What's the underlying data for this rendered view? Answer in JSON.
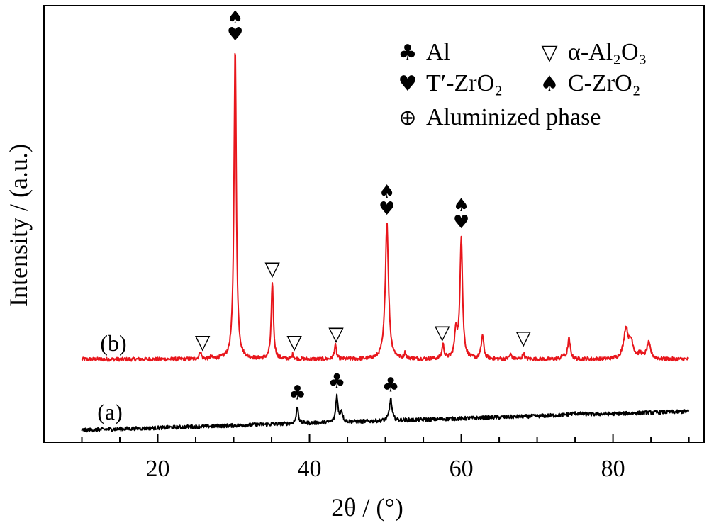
{
  "chart_data": {
    "type": "line",
    "xlabel": "2θ / (°)",
    "ylabel": "Intensity / (a.u.)",
    "xlim": [
      5,
      92
    ],
    "x_ticks": [
      20,
      40,
      60,
      80
    ],
    "grid": false,
    "y_ticks_shown": false,
    "series": [
      {
        "name": "(b)",
        "color": "#e8161c",
        "baseline": 0.05,
        "drift": 0.0,
        "peaks": [
          {
            "x": 25.6,
            "h": 0.025,
            "w": 0.15
          },
          {
            "x": 27.0,
            "h": 0.006,
            "w": 0.15
          },
          {
            "x": 30.2,
            "h": 1.0,
            "w": 0.18
          },
          {
            "x": 35.1,
            "h": 0.24,
            "w": 0.17
          },
          {
            "x": 37.8,
            "h": 0.015,
            "w": 0.14
          },
          {
            "x": 43.4,
            "h": 0.045,
            "w": 0.16
          },
          {
            "x": 50.2,
            "h": 0.44,
            "w": 0.25
          },
          {
            "x": 52.6,
            "h": 0.018,
            "w": 0.15
          },
          {
            "x": 57.6,
            "h": 0.045,
            "w": 0.17
          },
          {
            "x": 59.3,
            "h": 0.09,
            "w": 0.2
          },
          {
            "x": 60.0,
            "h": 0.39,
            "w": 0.2
          },
          {
            "x": 62.8,
            "h": 0.075,
            "w": 0.2
          },
          {
            "x": 66.5,
            "h": 0.015,
            "w": 0.2
          },
          {
            "x": 68.2,
            "h": 0.02,
            "w": 0.15
          },
          {
            "x": 73.4,
            "h": 0.01,
            "w": 0.2
          },
          {
            "x": 74.2,
            "h": 0.065,
            "w": 0.2
          },
          {
            "x": 81.7,
            "h": 0.095,
            "w": 0.35
          },
          {
            "x": 82.4,
            "h": 0.05,
            "w": 0.35
          },
          {
            "x": 84.7,
            "h": 0.05,
            "w": 0.3
          },
          {
            "x": 83.6,
            "h": 0.015,
            "w": 0.3
          }
        ]
      },
      {
        "name": "(a)",
        "color": "#000000",
        "baseline": 0.0,
        "drift": 0.06,
        "peaks": [
          {
            "x": 38.4,
            "h": 0.055,
            "w": 0.16
          },
          {
            "x": 43.6,
            "h": 0.085,
            "w": 0.16
          },
          {
            "x": 44.2,
            "h": 0.035,
            "w": 0.2
          },
          {
            "x": 50.7,
            "h": 0.07,
            "w": 0.2
          },
          {
            "x": 75.0,
            "h": 0.005,
            "w": 1.0
          }
        ]
      }
    ],
    "phase_markers": [
      {
        "x": 25.9,
        "symbol": "▽",
        "series": "(b)"
      },
      {
        "x": 30.2,
        "symbol": "♠♥",
        "series": "(b)"
      },
      {
        "x": 35.1,
        "symbol": "▽",
        "series": "(b)"
      },
      {
        "x": 38.0,
        "symbol": "▽",
        "series": "(b)"
      },
      {
        "x": 43.5,
        "symbol": "▽",
        "series": "(b)"
      },
      {
        "x": 50.2,
        "symbol": "♠♥",
        "series": "(b)"
      },
      {
        "x": 57.5,
        "symbol": "▽",
        "series": "(b)"
      },
      {
        "x": 60.0,
        "symbol": "♠♥",
        "series": "(b)"
      },
      {
        "x": 68.2,
        "symbol": "▽",
        "series": "(b)"
      },
      {
        "x": 38.4,
        "symbol": "♣",
        "series": "(a)"
      },
      {
        "x": 43.6,
        "symbol": "♣",
        "series": "(a)"
      },
      {
        "x": 50.7,
        "symbol": "♣",
        "series": "(a)"
      }
    ],
    "legend": {
      "placement": "top-right",
      "entries": [
        {
          "symbol": "♣",
          "name": "Al"
        },
        {
          "symbol": "▽",
          "name": "α-Al₂O₃"
        },
        {
          "symbol": "♥",
          "name": "T′-ZrO₂"
        },
        {
          "symbol": "♠",
          "name": "C-ZrO₂"
        },
        {
          "symbol": "⊕",
          "name": "Aluminized phase"
        }
      ]
    }
  }
}
